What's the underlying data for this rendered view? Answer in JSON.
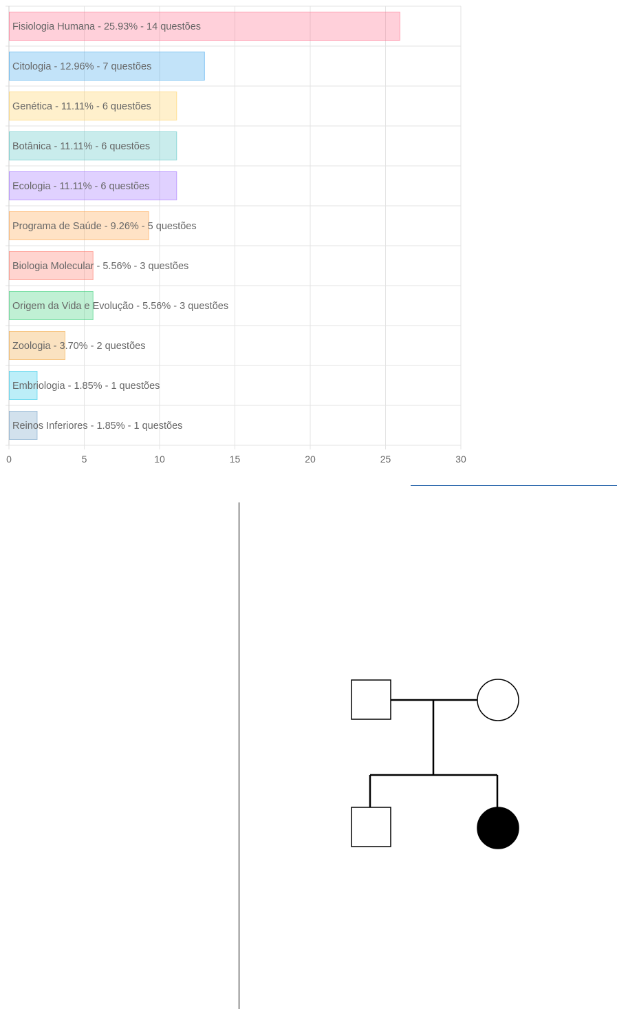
{
  "chart_data": {
    "type": "bar",
    "orientation": "horizontal",
    "categories": [
      "Fisiologia Humana - 25.93% - 14 questões",
      "Citologia - 12.96% - 7 questões",
      "Genética - 11.11% - 6 questões",
      "Botânica - 11.11% - 6 questões",
      "Ecologia - 11.11% - 6 questões",
      "Programa de Saúde - 9.26% - 5 questões",
      "Biologia Molecular - 5.56% - 3 questões",
      "Origem da Vida e Evolução - 5.56% - 3 questões",
      "Zoologia - 3.70% - 2 questões",
      "Embriologia - 1.85% - 1 questões",
      "Reinos Inferiores - 1.85% - 1 questões"
    ],
    "values": [
      25.93,
      12.96,
      11.11,
      11.11,
      11.11,
      9.26,
      5.56,
      5.56,
      3.7,
      1.85,
      1.85
    ],
    "xlim": [
      0,
      30
    ],
    "xticks": [
      "0",
      "5",
      "10",
      "15",
      "20",
      "25",
      "30"
    ],
    "grid": true,
    "colors": [
      "#ff6384",
      "#36a2eb",
      "#ffce56",
      "#4bc0c0",
      "#9966ff",
      "#ff9f40",
      "#ff6f61",
      "#2ecc71",
      "#f0a030",
      "#22c7e8",
      "#6b9bc3"
    ]
  },
  "pedigree": {
    "shapes": [
      "father-male-unaffected",
      "mother-female-unaffected",
      "son-male-unaffected",
      "daughter-female-affected"
    ],
    "affected_color": "#000000"
  }
}
